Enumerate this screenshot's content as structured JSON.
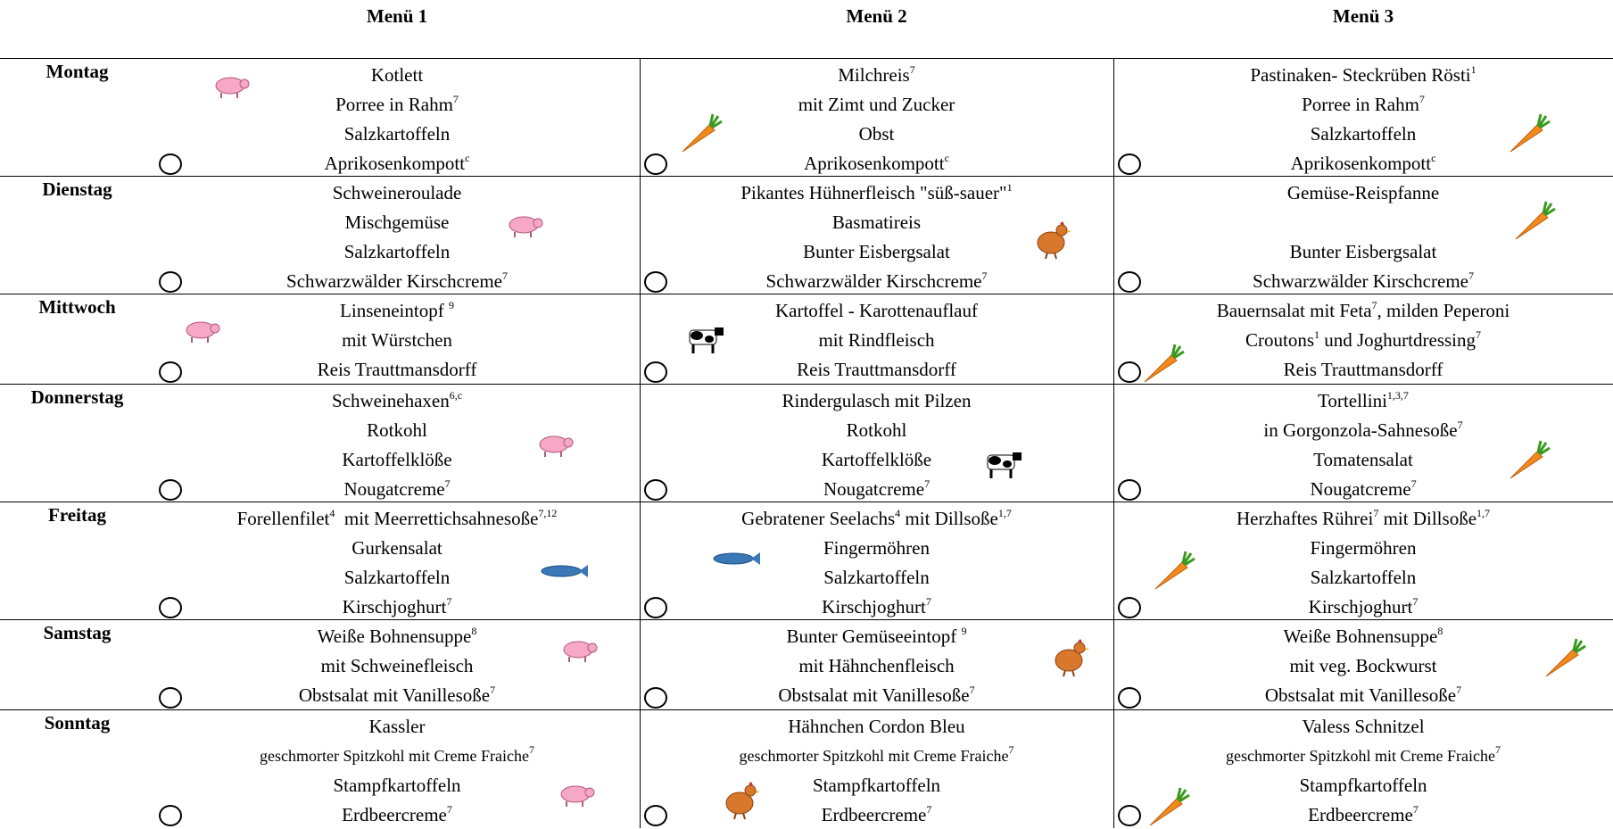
{
  "header": {
    "menus": [
      "Menü 1",
      "Menü 2",
      "Menü 3"
    ]
  },
  "days": [
    {
      "name": "Montag",
      "menus": [
        [
          [
            "Kotlett"
          ],
          [
            "Porree in Rahm",
            "7"
          ],
          [
            "Salzkartoffeln"
          ],
          [
            "Aprikosenkompott",
            "c"
          ]
        ],
        [
          [
            "Milchreis",
            "7"
          ],
          [
            "mit Zimt und Zucker"
          ],
          [
            "Obst"
          ],
          [
            "Aprikosenkompott",
            "c"
          ]
        ],
        [
          [
            "Pastinaken- Steckrüben Rösti",
            "1"
          ],
          [
            "Porree in Rahm",
            "7"
          ],
          [
            "Salzkartoffeln"
          ],
          [
            "Aprikosenkompott",
            "c"
          ]
        ]
      ]
    },
    {
      "name": "Dienstag",
      "menus": [
        [
          [
            "Schweineroulade"
          ],
          [
            "Mischgemüse"
          ],
          [
            "Salzkartoffeln"
          ],
          [
            "Schwarzwälder Kirschcreme",
            "7"
          ]
        ],
        [
          [
            "Pikantes Hühnerfleisch \"süß-sauer\"",
            "1"
          ],
          [
            "Basmatireis"
          ],
          [
            "Bunter Eisbergsalat"
          ],
          [
            "Schwarzwälder Kirschcreme",
            "7"
          ]
        ],
        [
          [
            "Gemüse-Reispfanne"
          ],
          null,
          [
            "Bunter Eisbergsalat"
          ],
          [
            "Schwarzwälder Kirschcreme",
            "7"
          ]
        ]
      ]
    },
    {
      "name": "Mittwoch",
      "menus": [
        [
          [
            "Linseneintopf ",
            "9"
          ],
          [
            "mit Würstchen"
          ],
          [
            "Reis Trauttmansdorff"
          ]
        ],
        [
          [
            "Kartoffel - Karottenauflauf"
          ],
          [
            "mit Rindfleisch"
          ],
          [
            "Reis Trauttmansdorff"
          ]
        ],
        [
          [
            "Bauernsalat mit Feta",
            "7",
            ", milden Peperoni"
          ],
          [
            "Croutons",
            "1",
            " und Joghurtdressing",
            "7"
          ],
          [
            "Reis Trauttmansdorff"
          ]
        ]
      ]
    },
    {
      "name": "Donnerstag",
      "menus": [
        [
          [
            "Schweinehaxen",
            "6,c"
          ],
          [
            "Rotkohl"
          ],
          [
            "Kartoffelklöße"
          ],
          [
            "Nougatcreme",
            "7"
          ]
        ],
        [
          [
            "Rindergulasch mit Pilzen"
          ],
          [
            "Rotkohl"
          ],
          [
            "Kartoffelklöße"
          ],
          [
            "Nougatcreme",
            "7"
          ]
        ],
        [
          [
            "Tortellini",
            "1,3,7"
          ],
          [
            "in Gorgonzola-Sahnesoße",
            "7"
          ],
          [
            "Tomatensalat"
          ],
          [
            "Nougatcreme",
            "7"
          ]
        ]
      ]
    },
    {
      "name": "Freitag",
      "menus": [
        [
          [
            "Forellenfilet",
            "4",
            "  mit Meerrettichsahnesoße",
            "7,12"
          ],
          [
            "Gurkensalat"
          ],
          [
            "Salzkartoffeln"
          ],
          [
            "Kirschjoghurt",
            "7"
          ]
        ],
        [
          [
            "Gebratener Seelachs",
            "4",
            " mit Dillsoße",
            "1,7"
          ],
          [
            "Fingermöhren"
          ],
          [
            "Salzkartoffeln"
          ],
          [
            "Kirschjoghurt",
            "7"
          ]
        ],
        [
          [
            "Herzhaftes Rührei",
            "7",
            " mit Dillsoße",
            "1,7"
          ],
          [
            "Fingermöhren"
          ],
          [
            "Salzkartoffeln"
          ],
          [
            "Kirschjoghurt",
            "7"
          ]
        ]
      ]
    },
    {
      "name": "Samstag",
      "menus": [
        [
          [
            "Weiße Bohnensuppe",
            "8"
          ],
          [
            "mit Schweinefleisch"
          ],
          [
            "Obstsalat mit Vanillesoße",
            "7"
          ]
        ],
        [
          [
            "Bunter Gemüseeintopf ",
            "9"
          ],
          [
            "mit Hähnchenfleisch"
          ],
          [
            "Obstsalat mit Vanillesoße",
            "7"
          ]
        ],
        [
          [
            "Weiße Bohnensuppe",
            "8"
          ],
          [
            "mit veg. Bockwurst"
          ],
          [
            "Obstsalat mit Vanillesoße",
            "7"
          ]
        ]
      ]
    },
    {
      "name": "Sonntag",
      "menus": [
        [
          [
            "Kassler"
          ],
          [
            "geschmorter Spitzkohl mit Creme Fraiche",
            "7"
          ],
          [
            "Stampfkartoffeln"
          ],
          [
            "Erdbeercreme",
            "7"
          ]
        ],
        [
          [
            "Hähnchen Cordon Bleu"
          ],
          [
            "geschmorter Spitzkohl mit Creme Fraiche",
            "7"
          ],
          [
            "Stampfkartoffeln"
          ],
          [
            "Erdbeercreme",
            "7"
          ]
        ],
        [
          [
            "Valess Schnitzel"
          ],
          [
            "geschmorter Spitzkohl mit Creme Fraiche",
            "7"
          ],
          [
            "Stampfkartoffeln"
          ],
          [
            "Erdbeercreme",
            "7"
          ]
        ]
      ]
    }
  ]
}
